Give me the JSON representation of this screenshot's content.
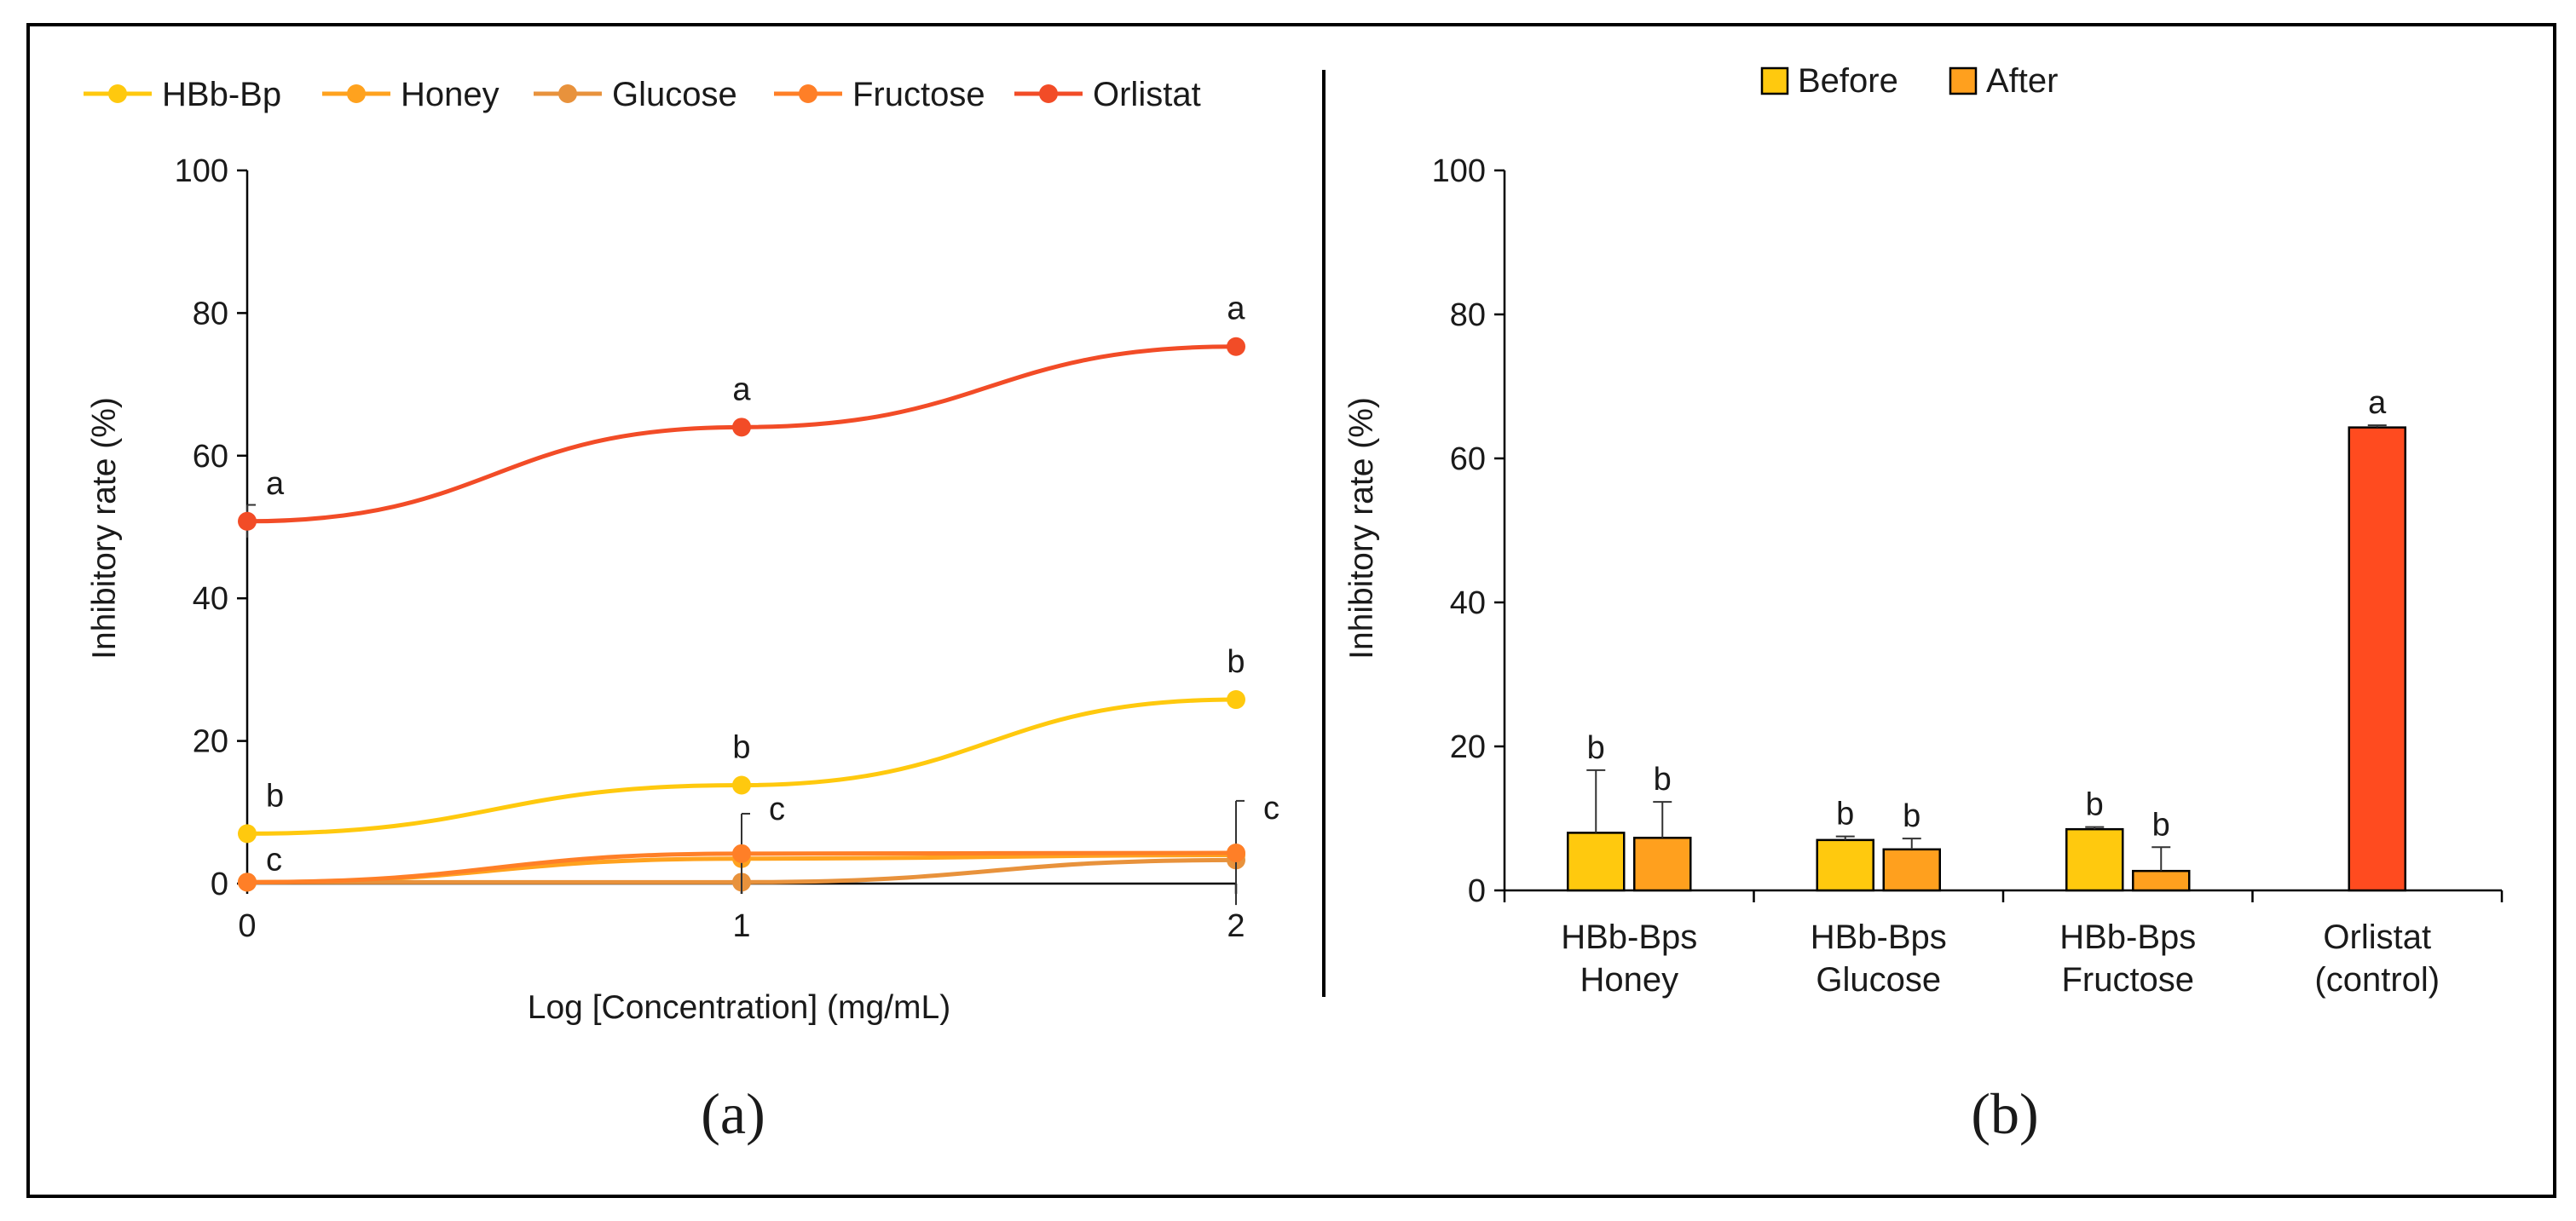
{
  "chart_data": [
    {
      "panel": "(a)",
      "type": "line",
      "xlabel": "Log [Concentration] (mg/mL)",
      "ylabel": "Inhibitory rate (%)",
      "xlim": [
        0,
        2
      ],
      "ylim": [
        0,
        100
      ],
      "x_ticks": [
        0,
        1,
        2
      ],
      "y_ticks": [
        0,
        20,
        40,
        60,
        80,
        100
      ],
      "legend_position": "top",
      "grid": false,
      "series": [
        {
          "name": "HBb-Bp",
          "color": "#FFC90E",
          "x": [
            0,
            1,
            2
          ],
          "y": [
            7.0,
            13.8,
            25.8
          ],
          "labels": [
            "b",
            "b",
            "b"
          ],
          "error": [
            0,
            0,
            0
          ]
        },
        {
          "name": "Honey",
          "color": "#FFA21E",
          "x": [
            0,
            1,
            2
          ],
          "y": [
            0.2,
            3.5,
            4.0
          ],
          "labels": [
            "",
            "",
            ""
          ],
          "error": [
            0,
            0,
            0
          ]
        },
        {
          "name": "Glucose",
          "color": "#E8923C",
          "x": [
            0,
            1,
            2
          ],
          "y": [
            0.2,
            0.2,
            3.3
          ],
          "labels": [
            "",
            "",
            ""
          ],
          "error": [
            0,
            0,
            0
          ]
        },
        {
          "name": "Fructose",
          "color": "#FF7F27",
          "x": [
            0,
            1,
            2
          ],
          "y": [
            0.2,
            4.2,
            4.3
          ],
          "labels": [
            "c",
            "c",
            "c"
          ],
          "error": [
            0,
            5.6,
            7.3
          ]
        },
        {
          "name": "Orlistat",
          "color": "#F24C27",
          "x": [
            0,
            1,
            2
          ],
          "y": [
            50.8,
            64.0,
            75.3
          ],
          "labels": [
            "a",
            "a",
            "a"
          ],
          "error": [
            2.3,
            0,
            0
          ]
        }
      ]
    },
    {
      "panel": "(b)",
      "type": "bar",
      "ylabel": "Inhibitory rate (%)",
      "ylim": [
        0,
        100
      ],
      "y_ticks": [
        0,
        20,
        40,
        60,
        80,
        100
      ],
      "legend_position": "top",
      "grid": false,
      "categories": [
        [
          "HBb-Bps",
          "Honey"
        ],
        [
          "HBb-Bps",
          "Glucose"
        ],
        [
          "HBb-Bps",
          "Fructose"
        ],
        [
          "Orlistat",
          "(control)"
        ]
      ],
      "series": [
        {
          "name": "Before",
          "color": "#FFC90E",
          "values": [
            8.0,
            7.0,
            8.5,
            null
          ],
          "error": [
            8.7,
            0.5,
            0.3,
            0
          ],
          "labels": [
            "b",
            "b",
            "b",
            ""
          ]
        },
        {
          "name": "After",
          "color": "#FFA01E",
          "values": [
            7.3,
            5.7,
            2.7,
            null
          ],
          "error": [
            5.0,
            1.5,
            3.3,
            0
          ],
          "labels": [
            "b",
            "b",
            "b",
            ""
          ]
        },
        {
          "name": "",
          "color": "#FF4B1F",
          "values": [
            null,
            null,
            null,
            64.3
          ],
          "error": [
            0,
            0,
            0,
            0.3
          ],
          "labels": [
            "",
            "",
            "",
            "a"
          ]
        }
      ]
    }
  ]
}
